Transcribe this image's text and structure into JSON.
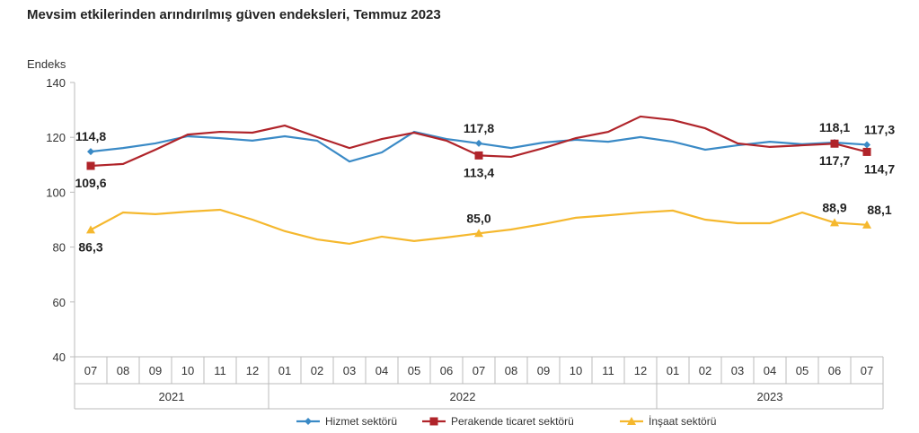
{
  "chart_data": {
    "type": "line",
    "title": "Mevsim etkilerinden arındırılmış güven endeksleri, Temmuz 2023",
    "ylabel": "Endeks",
    "ylim": [
      40,
      140
    ],
    "yticks": [
      40,
      60,
      80,
      100,
      120,
      140
    ],
    "grid": false,
    "legend": "bottom",
    "categories": [
      "07",
      "08",
      "09",
      "10",
      "11",
      "12",
      "01",
      "02",
      "03",
      "04",
      "05",
      "06",
      "07",
      "08",
      "09",
      "10",
      "11",
      "12",
      "01",
      "02",
      "03",
      "04",
      "05",
      "06",
      "07"
    ],
    "years": [
      {
        "label": "2021",
        "span": 6
      },
      {
        "label": "2022",
        "span": 12
      },
      {
        "label": "2023",
        "span": 7
      }
    ],
    "series": [
      {
        "name": "Hizmet sektörü",
        "color": "#3a8ac6",
        "marker": "diamond",
        "values": [
          114.8,
          116.1,
          117.8,
          120.4,
          119.7,
          118.8,
          120.4,
          118.8,
          111.2,
          114.5,
          122.0,
          119.4,
          117.8,
          116.1,
          118.1,
          119.1,
          118.4,
          120.1,
          118.4,
          115.5,
          117.1,
          118.4,
          117.5,
          118.1,
          117.3
        ],
        "labels": [
          {
            "i": 0,
            "text": "114,8",
            "pos": "above"
          },
          {
            "i": 12,
            "text": "117,8",
            "pos": "above"
          },
          {
            "i": 23,
            "text": "118,1",
            "pos": "above"
          },
          {
            "i": 24,
            "text": "117,3",
            "pos": "above"
          }
        ]
      },
      {
        "name": "Perakende ticaret sektörü",
        "color": "#b0242a",
        "marker": "square",
        "values": [
          109.6,
          110.3,
          115.5,
          121.0,
          122.0,
          121.7,
          124.3,
          120.1,
          116.1,
          119.4,
          121.7,
          118.8,
          113.4,
          112.9,
          116.1,
          119.7,
          122.0,
          127.6,
          126.3,
          123.3,
          117.8,
          116.5,
          117.1,
          117.7,
          114.7
        ],
        "labels": [
          {
            "i": 0,
            "text": "109,6",
            "pos": "below"
          },
          {
            "i": 12,
            "text": "113,4",
            "pos": "below"
          },
          {
            "i": 23,
            "text": "117,7",
            "pos": "below"
          },
          {
            "i": 24,
            "text": "114,7",
            "pos": "below"
          }
        ]
      },
      {
        "name": "İnşaat sektörü",
        "color": "#f5b82e",
        "marker": "triangle",
        "values": [
          86.3,
          92.6,
          92.0,
          92.9,
          93.6,
          90.0,
          85.8,
          82.8,
          81.2,
          83.8,
          82.2,
          83.5,
          85.0,
          86.4,
          88.4,
          90.7,
          91.6,
          92.6,
          93.3,
          90.0,
          88.7,
          88.7,
          92.6,
          88.9,
          88.1
        ],
        "labels": [
          {
            "i": 0,
            "text": "86,3",
            "pos": "below"
          },
          {
            "i": 12,
            "text": "85,0",
            "pos": "above"
          },
          {
            "i": 23,
            "text": "88,9",
            "pos": "above"
          },
          {
            "i": 24,
            "text": "88,1",
            "pos": "above"
          }
        ]
      }
    ]
  }
}
